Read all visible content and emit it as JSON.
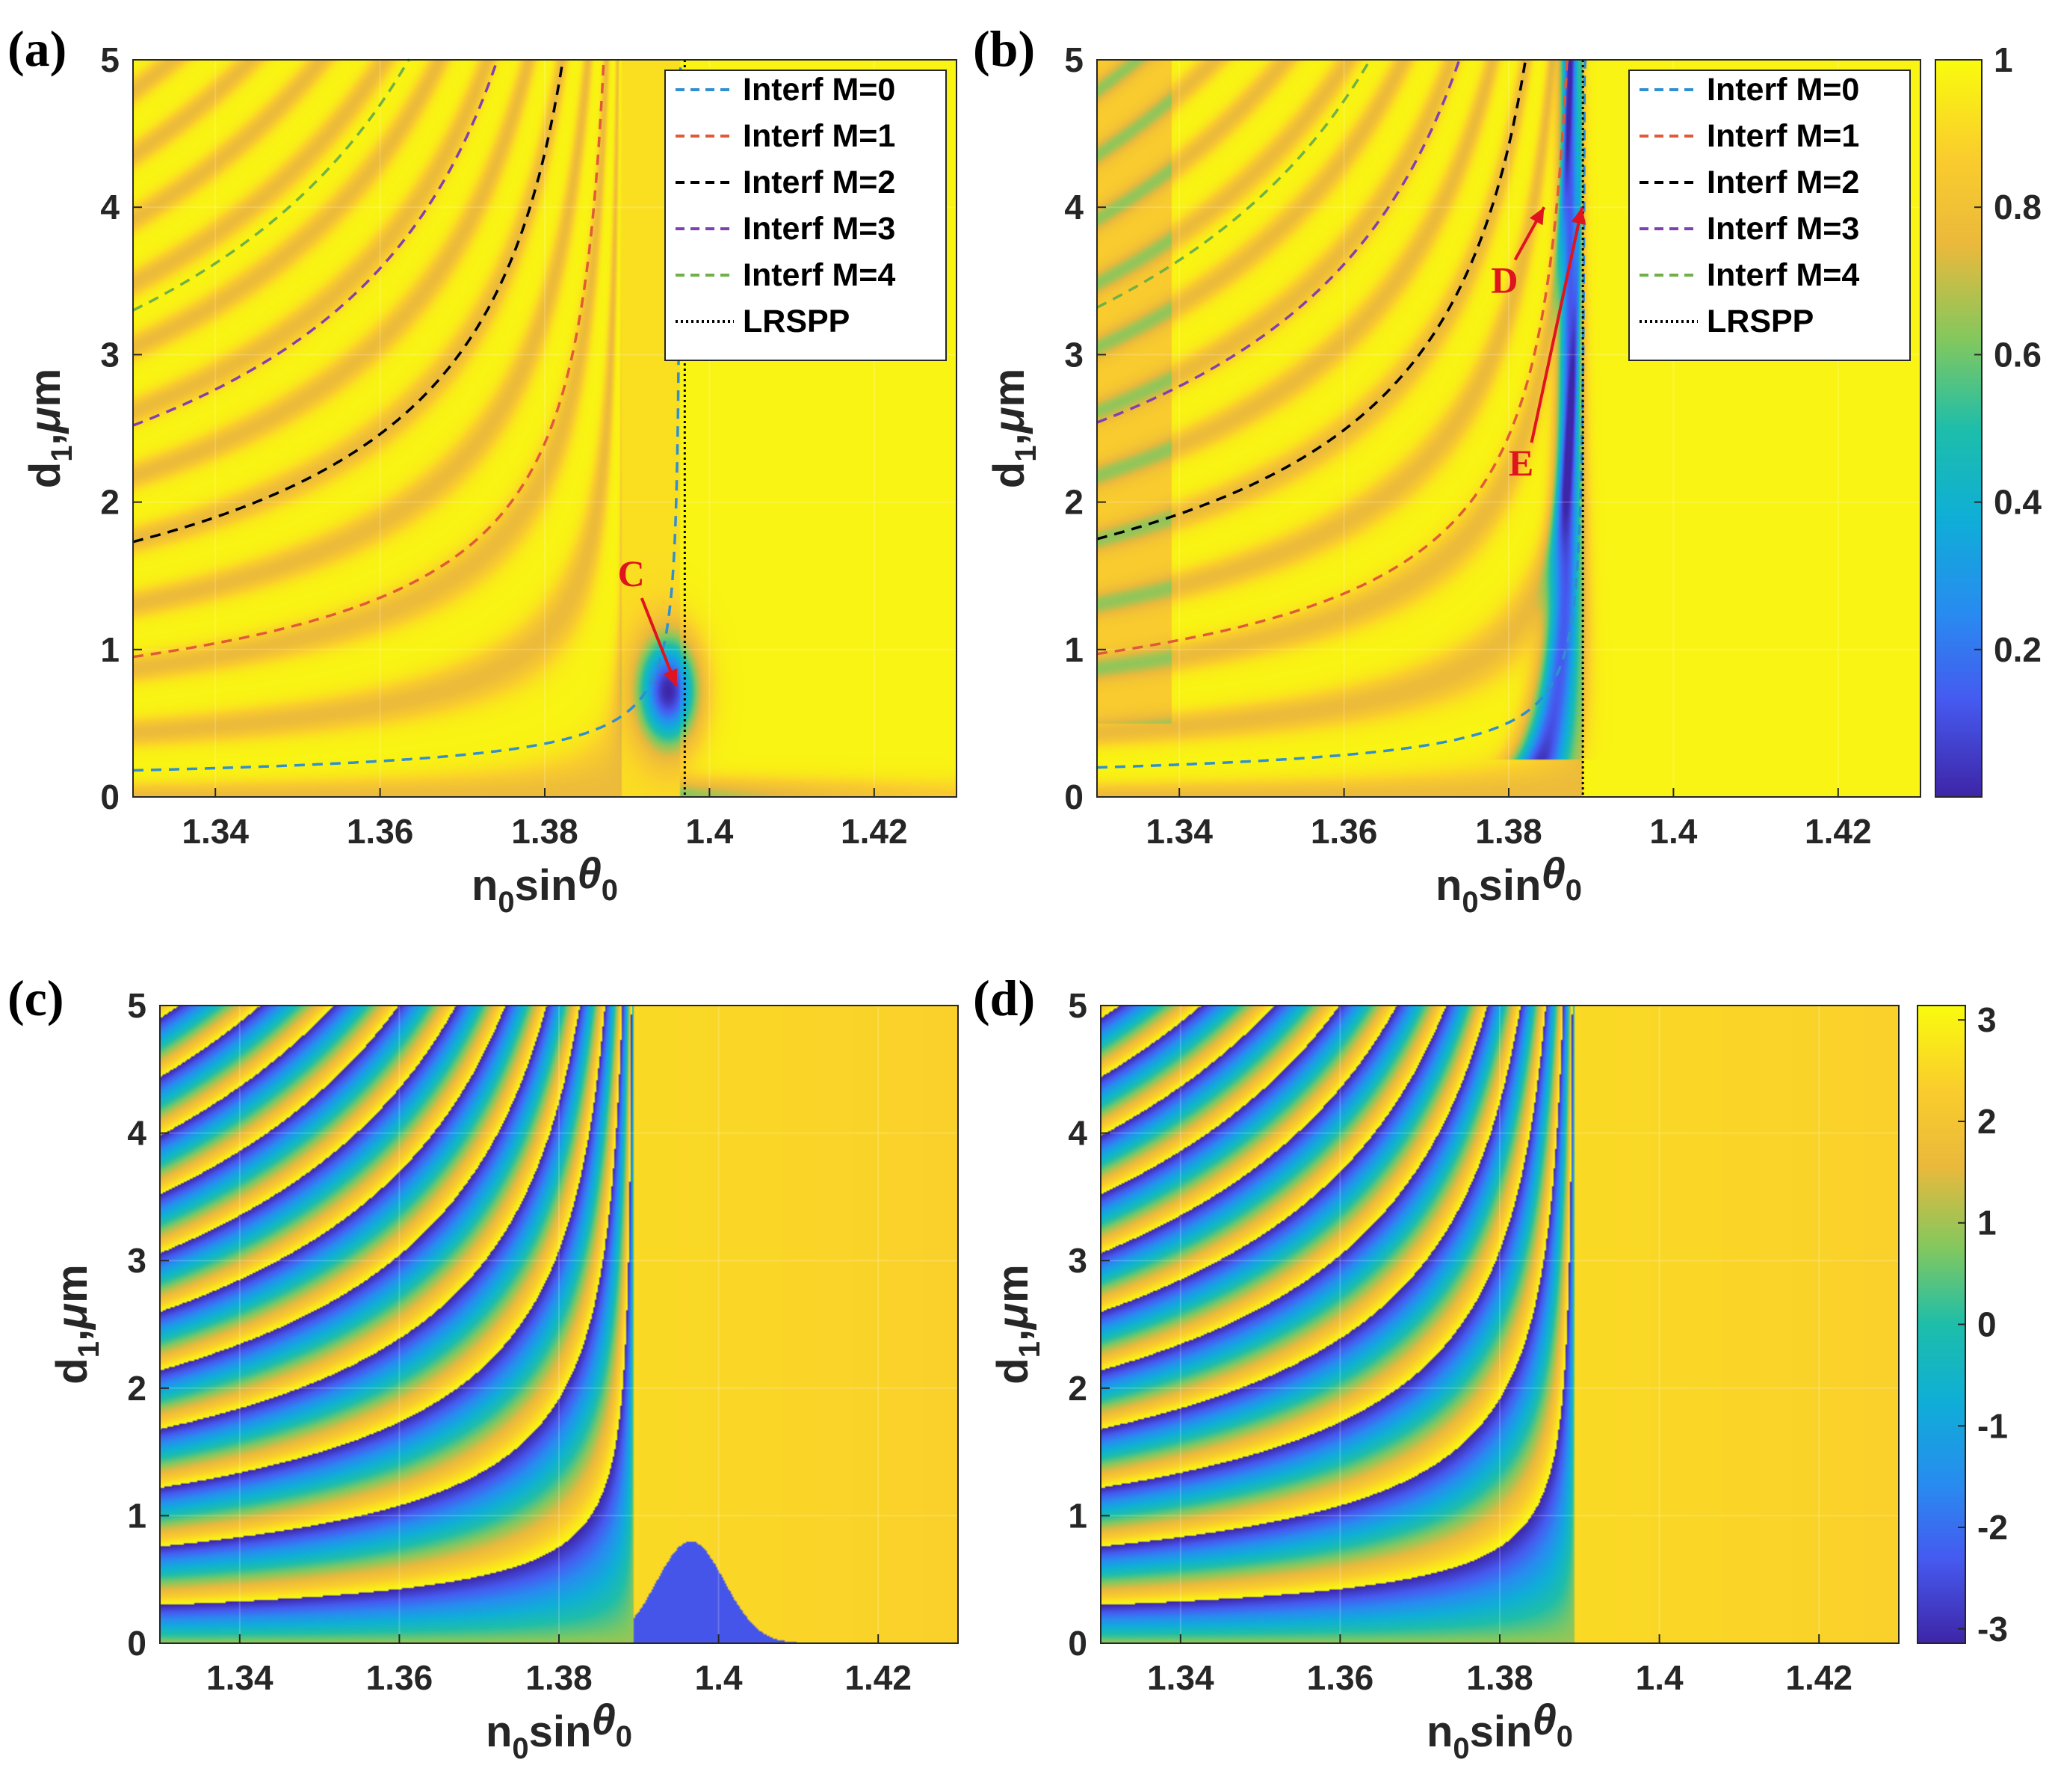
{
  "figure": {
    "colors": {
      "low": "#3e26a8",
      "mid": "#20b6b4",
      "high": "#f9fb0e",
      "annotation": "#e0141e"
    }
  },
  "chart_data": [
    {
      "id": "a",
      "panel_label": "(a)",
      "type": "heatmap",
      "title": "",
      "xlabel": "n0sinθ0",
      "ylabel": "d1,μm",
      "xlim": [
        1.33,
        1.43
      ],
      "ylim": [
        0,
        5
      ],
      "xticks": [
        "1.34",
        "1.36",
        "1.38",
        "1.4",
        "1.42"
      ],
      "xtick_values": [
        1.34,
        1.36,
        1.38,
        1.4,
        1.42
      ],
      "yticks": [
        "0",
        "1",
        "2",
        "3",
        "4",
        "5"
      ],
      "ytick_values": [
        0,
        1,
        2,
        3,
        4,
        5
      ],
      "quantity": "reflectance",
      "x_res": 1.3965,
      "legend": {
        "position": "top-right",
        "entries": [
          {
            "label": "Interf M=0",
            "color": "#2f8fd0",
            "dash": "dashed"
          },
          {
            "label": "Interf M=1",
            "color": "#e05a3a",
            "dash": "dashed"
          },
          {
            "label": "Interf M=2",
            "color": "#000000",
            "dash": "dashed"
          },
          {
            "label": "Interf M=3",
            "color": "#8040b0",
            "dash": "dashed"
          },
          {
            "label": "Interf M=4",
            "color": "#70b048",
            "dash": "dashed"
          },
          {
            "label": "LRSPP",
            "color": "#000000",
            "dash": "dotted"
          }
        ]
      },
      "series": [
        {
          "name": "Interf M=0",
          "M": 0,
          "x_asym": 1.3965,
          "d_at_1_33": 0.18,
          "color": "#2f8fd0"
        },
        {
          "name": "Interf M=1",
          "M": 1,
          "x_asym": 1.3893,
          "d_at_1_33": 0.95,
          "color": "#e05a3a"
        },
        {
          "name": "Interf M=2",
          "M": 2,
          "x_asym": 1.3893,
          "d_at_1_33": 1.73,
          "color": "#000000"
        },
        {
          "name": "Interf M=3",
          "M": 3,
          "x_asym": 1.3893,
          "d_at_1_33": 2.52,
          "color": "#8040b0"
        },
        {
          "name": "Interf M=4",
          "M": 4,
          "x_asym": 1.3893,
          "d_at_1_33": 3.3,
          "color": "#70b048"
        },
        {
          "name": "LRSPP",
          "x": 1.397,
          "color": "#000000"
        }
      ],
      "annotations": [
        {
          "text": "C",
          "tip": [
            1.396,
            0.75
          ],
          "label_at": [
            1.3905,
            1.43
          ]
        }
      ]
    },
    {
      "id": "b",
      "panel_label": "(b)",
      "type": "heatmap",
      "title": "",
      "xlabel": "n0sinθ0",
      "ylabel": "d1,μm",
      "xlim": [
        1.33,
        1.43
      ],
      "ylim": [
        0,
        5
      ],
      "xticks": [
        "1.34",
        "1.36",
        "1.38",
        "1.4",
        "1.42"
      ],
      "xtick_values": [
        1.34,
        1.36,
        1.38,
        1.4,
        1.42
      ],
      "yticks": [
        "0",
        "1",
        "2",
        "3",
        "4",
        "5"
      ],
      "ytick_values": [
        0,
        1,
        2,
        3,
        4,
        5
      ],
      "quantity": "reflectance",
      "x_res": 1.389,
      "legend": {
        "position": "top-right",
        "entries": [
          {
            "label": "Interf M=0",
            "color": "#2f8fd0",
            "dash": "dashed"
          },
          {
            "label": "Interf M=1",
            "color": "#e05a3a",
            "dash": "dashed"
          },
          {
            "label": "Interf M=2",
            "color": "#000000",
            "dash": "dashed"
          },
          {
            "label": "Interf M=3",
            "color": "#8040b0",
            "dash": "dashed"
          },
          {
            "label": "Interf M=4",
            "color": "#70b048",
            "dash": "dashed"
          },
          {
            "label": "LRSPP",
            "color": "#000000",
            "dash": "dotted"
          }
        ]
      },
      "series": [
        {
          "name": "Interf M=0",
          "M": 0,
          "x_asym": 1.3893,
          "d_at_1_33": 0.2,
          "color": "#2f8fd0"
        },
        {
          "name": "Interf M=1",
          "M": 1,
          "x_asym": 1.3893,
          "d_at_1_33": 0.97,
          "color": "#e05a3a"
        },
        {
          "name": "Interf M=2",
          "M": 2,
          "x_asym": 1.3893,
          "d_at_1_33": 1.75,
          "color": "#000000"
        },
        {
          "name": "Interf M=3",
          "M": 3,
          "x_asym": 1.3893,
          "d_at_1_33": 2.54,
          "color": "#8040b0"
        },
        {
          "name": "Interf M=4",
          "M": 4,
          "x_asym": 1.3893,
          "d_at_1_33": 3.32,
          "color": "#70b048"
        },
        {
          "name": "LRSPP",
          "x": 1.389,
          "color": "#000000"
        }
      ],
      "annotations": [
        {
          "text": "D",
          "tip": [
            1.3843,
            4.0
          ],
          "label_at": [
            1.3795,
            3.42
          ]
        },
        {
          "text": "E",
          "tip": [
            1.3889,
            4.0
          ],
          "label_at": [
            1.3815,
            2.18
          ]
        }
      ],
      "colorbar": {
        "ticks": [
          "1",
          "0.8",
          "0.6",
          "0.4",
          "0.2"
        ],
        "tick_values": [
          1,
          0.8,
          0.6,
          0.4,
          0.2
        ],
        "range": [
          0,
          1
        ]
      }
    },
    {
      "id": "c",
      "panel_label": "(c)",
      "type": "heatmap",
      "title": "",
      "xlabel": "n0sinθ0",
      "ylabel": "d1,μm",
      "xlim": [
        1.33,
        1.43
      ],
      "ylim": [
        0,
        5
      ],
      "xticks": [
        "1.34",
        "1.36",
        "1.38",
        "1.4",
        "1.42"
      ],
      "xtick_values": [
        1.34,
        1.36,
        1.38,
        1.4,
        1.42
      ],
      "yticks": [
        "0",
        "1",
        "2",
        "3",
        "4",
        "5"
      ],
      "ytick_values": [
        0,
        1,
        2,
        3,
        4,
        5
      ],
      "quantity": "phase",
      "x_res": 1.3965,
      "phase_cutoff": 1.3893,
      "series": [],
      "annotations": []
    },
    {
      "id": "d",
      "panel_label": "(d)",
      "type": "heatmap",
      "title": "",
      "xlabel": "n0sinθ0",
      "ylabel": "d1,μm",
      "xlim": [
        1.33,
        1.43
      ],
      "ylim": [
        0,
        5
      ],
      "xticks": [
        "1.34",
        "1.36",
        "1.38",
        "1.4",
        "1.42"
      ],
      "xtick_values": [
        1.34,
        1.36,
        1.38,
        1.4,
        1.42
      ],
      "yticks": [
        "0",
        "1",
        "2",
        "3",
        "4",
        "5"
      ],
      "ytick_values": [
        0,
        1,
        2,
        3,
        4,
        5
      ],
      "quantity": "phase",
      "x_res": 1.389,
      "phase_cutoff": 1.3893,
      "series": [],
      "annotations": [],
      "colorbar": {
        "ticks": [
          "3",
          "2",
          "1",
          "0",
          "-1",
          "-2",
          "-3"
        ],
        "tick_values": [
          3,
          2,
          1,
          0,
          -1,
          -2,
          -3
        ],
        "range": [
          -3.1416,
          3.1416
        ]
      }
    }
  ]
}
